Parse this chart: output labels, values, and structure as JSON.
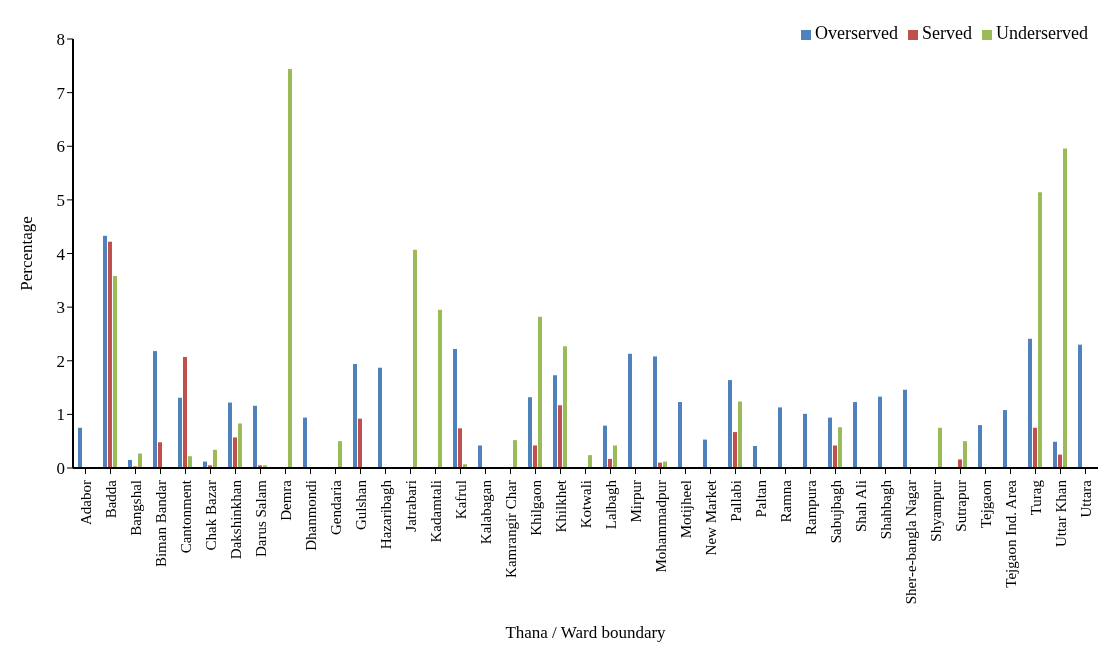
{
  "chart_data": {
    "type": "bar",
    "xlabel": "Thana / Ward boundary",
    "ylabel": "Percentage",
    "categories": [
      "Adabor",
      "Badda",
      "Bangshal",
      "Biman Bandar",
      "Cantonment",
      "Chak Bazar",
      "Dakshinkhan",
      "Darus Salam",
      "Demra",
      "Dhanmondi",
      "Gendaria",
      "Gulshan",
      "Hazaribagh",
      "Jatrabari",
      "Kadamtali",
      "Kafrul",
      "Kalabagan",
      "Kamrangir Char",
      "Khilgaon",
      "Khilkhet",
      "Kotwali",
      "Lalbagh",
      "Mirpur",
      "Mohammadpur",
      "Motijheel",
      "New Market",
      "Pallabi",
      "Paltan",
      "Ramna",
      "Rampura",
      "Sabujbagh",
      "Shah Ali",
      "Shahbagh",
      "Sher-e-bangla Nagar",
      "Shyampur",
      "Sutrapur",
      "Tejgaon",
      "Tejgaon Ind. Area",
      "Turag",
      "Uttar Khan",
      "Uttara"
    ],
    "series": [
      {
        "name": "Overserved",
        "color": "#4f81bd",
        "values": [
          0.75,
          4.33,
          0.15,
          2.18,
          1.31,
          0.12,
          1.22,
          1.16,
          0,
          0.94,
          0,
          1.94,
          1.87,
          0,
          0,
          2.22,
          0.42,
          0,
          1.32,
          1.73,
          0,
          0.79,
          2.13,
          2.08,
          1.23,
          0.53,
          1.64,
          0.41,
          1.13,
          1.01,
          0.94,
          1.23,
          1.33,
          1.46,
          0,
          null,
          0.8,
          1.08,
          2.41,
          0.49,
          2.3
        ]
      },
      {
        "name": "Served",
        "color": "#c0504d",
        "values": [
          0,
          4.22,
          0.03,
          0.48,
          2.07,
          0.05,
          0.57,
          0.05,
          0,
          0,
          0,
          0.92,
          0,
          0,
          0,
          0.74,
          0,
          0,
          0.42,
          1.17,
          0,
          0.17,
          0,
          0.1,
          0,
          0,
          0.67,
          0,
          0,
          0,
          0.42,
          0,
          0,
          0,
          0,
          0.16,
          0,
          0,
          0.75,
          0.25,
          null
        ]
      },
      {
        "name": "Underserved",
        "color": "#9bbb59",
        "values": [
          0,
          3.58,
          0.27,
          0,
          0.22,
          0.34,
          0.83,
          0.05,
          7.44,
          0,
          0.5,
          0,
          0,
          4.07,
          2.95,
          0.07,
          0,
          0.52,
          2.82,
          2.27,
          0.24,
          0.42,
          0,
          0.12,
          0,
          0,
          1.24,
          0,
          0,
          0,
          0.76,
          0,
          0,
          0,
          0.75,
          0.5,
          0,
          0,
          5.14,
          5.96,
          0
        ]
      }
    ],
    "ylim": [
      0,
      8
    ],
    "yticks": [
      0,
      1,
      2,
      3,
      4,
      5,
      6,
      7,
      8
    ],
    "grid": false,
    "legend": "top right"
  }
}
